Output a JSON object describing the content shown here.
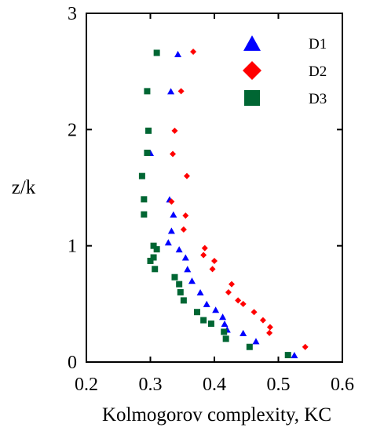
{
  "chart_data": {
    "type": "scatter",
    "xlabel": "Kolmogorov complexity, KC",
    "ylabel": "z/k",
    "xlim": [
      0.2,
      0.6
    ],
    "ylim": [
      0,
      3
    ],
    "x_ticks": [
      "0.2",
      "0.3",
      "0.4",
      "0.5",
      "0.6"
    ],
    "y_ticks": [
      "0",
      "1",
      "2",
      "3"
    ],
    "legend_position": "top-right",
    "grid": false,
    "series": [
      {
        "name": "D1",
        "marker": "triangle",
        "color": "#0000ff",
        "points": [
          [
            0.343,
            2.65
          ],
          [
            0.332,
            2.33
          ],
          [
            0.3,
            1.8
          ],
          [
            0.33,
            1.4
          ],
          [
            0.336,
            1.27
          ],
          [
            0.333,
            1.13
          ],
          [
            0.328,
            1.03
          ],
          [
            0.345,
            0.97
          ],
          [
            0.355,
            0.9
          ],
          [
            0.358,
            0.8
          ],
          [
            0.365,
            0.7
          ],
          [
            0.378,
            0.6
          ],
          [
            0.388,
            0.5
          ],
          [
            0.402,
            0.45
          ],
          [
            0.413,
            0.39
          ],
          [
            0.416,
            0.33
          ],
          [
            0.42,
            0.28
          ],
          [
            0.445,
            0.25
          ],
          [
            0.465,
            0.18
          ],
          [
            0.525,
            0.06
          ]
        ]
      },
      {
        "name": "D2",
        "marker": "diamond",
        "color": "#ff0000",
        "points": [
          [
            0.367,
            2.67
          ],
          [
            0.348,
            2.33
          ],
          [
            0.338,
            1.99
          ],
          [
            0.335,
            1.79
          ],
          [
            0.357,
            1.6
          ],
          [
            0.333,
            1.38
          ],
          [
            0.355,
            1.26
          ],
          [
            0.352,
            1.14
          ],
          [
            0.385,
            0.98
          ],
          [
            0.383,
            0.92
          ],
          [
            0.4,
            0.87
          ],
          [
            0.397,
            0.8
          ],
          [
            0.427,
            0.67
          ],
          [
            0.422,
            0.6
          ],
          [
            0.437,
            0.53
          ],
          [
            0.445,
            0.5
          ],
          [
            0.462,
            0.43
          ],
          [
            0.476,
            0.36
          ],
          [
            0.487,
            0.3
          ],
          [
            0.486,
            0.25
          ],
          [
            0.542,
            0.13
          ]
        ]
      },
      {
        "name": "D3",
        "marker": "square",
        "color": "#006633",
        "points": [
          [
            0.31,
            2.66
          ],
          [
            0.295,
            2.33
          ],
          [
            0.297,
            1.99
          ],
          [
            0.295,
            1.8
          ],
          [
            0.287,
            1.6
          ],
          [
            0.29,
            1.4
          ],
          [
            0.29,
            1.27
          ],
          [
            0.305,
            1.0
          ],
          [
            0.31,
            0.97
          ],
          [
            0.305,
            0.9
          ],
          [
            0.3,
            0.87
          ],
          [
            0.307,
            0.8
          ],
          [
            0.338,
            0.73
          ],
          [
            0.345,
            0.67
          ],
          [
            0.347,
            0.6
          ],
          [
            0.352,
            0.53
          ],
          [
            0.373,
            0.43
          ],
          [
            0.383,
            0.36
          ],
          [
            0.395,
            0.33
          ],
          [
            0.415,
            0.26
          ],
          [
            0.418,
            0.2
          ],
          [
            0.455,
            0.13
          ],
          [
            0.515,
            0.06
          ]
        ]
      }
    ]
  }
}
